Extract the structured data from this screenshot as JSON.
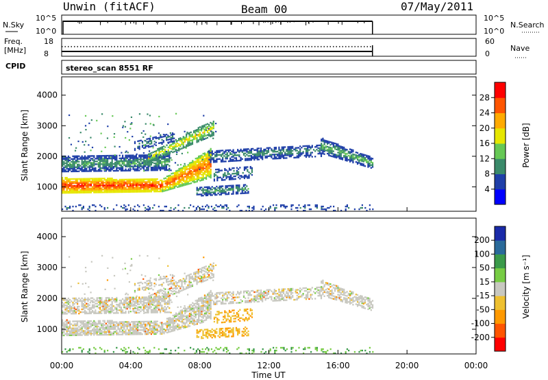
{
  "header": {
    "station": "Unwin (fitACF)",
    "beam": "Beam 00",
    "date": "07/May/2011",
    "program": "stereo_scan 8551 RF"
  },
  "noise_panel": {
    "left_label": "N.Sky",
    "right_label": "N.Search",
    "left_ticks": [
      "10^5",
      "10^0"
    ],
    "right_ticks": [
      "10^5",
      "10^0"
    ]
  },
  "freq_panel": {
    "left_label_1": "Freq.",
    "left_label_2": "[MHz]",
    "left_ticks": [
      "18",
      "8"
    ],
    "right_label": "Nave",
    "right_ticks": [
      "60",
      "0"
    ]
  },
  "cpid_label": "CPID",
  "colors": {
    "power_scale": [
      "#0000ff",
      "#1f3fa8",
      "#3a8a6a",
      "#66c855",
      "#e6e600",
      "#ffaa00",
      "#ff5500",
      "#ff0000"
    ],
    "velocity_scale": [
      "#1a2aa8",
      "#2a6a9a",
      "#3a9a4a",
      "#77cc44",
      "#c8c8c0",
      "#eec030",
      "#ff9900",
      "#ff5500",
      "#ff0000"
    ],
    "grey": "#c8c8c0"
  },
  "chart_data": [
    {
      "type": "heatmap",
      "name": "power",
      "ylabel": "Slant Range [km]",
      "yticks": [
        "1000",
        "2000",
        "3000",
        "4000"
      ],
      "ylim": [
        200,
        4600
      ],
      "colorbar_label": "Power [dB]",
      "colorbar_ticks": [
        "4",
        "8",
        "12",
        "16",
        "20",
        "24",
        "28"
      ],
      "color_range": [
        0,
        32
      ],
      "approx_regions": [
        {
          "x_hours": [
            0,
            6
          ],
          "range_km": [
            800,
            1300
          ],
          "power_db": [
            20,
            30
          ]
        },
        {
          "x_hours": [
            0,
            6
          ],
          "range_km": [
            1500,
            2000
          ],
          "power_db": [
            4,
            12
          ]
        },
        {
          "x_hours": [
            5.5,
            9
          ],
          "range_km": [
            1200,
            3200
          ],
          "power_db": [
            12,
            24
          ]
        },
        {
          "x_hours": [
            9,
            18
          ],
          "range_km": [
            1700,
            2400
          ],
          "power_db": [
            4,
            14
          ]
        }
      ]
    },
    {
      "type": "heatmap",
      "name": "velocity",
      "ylabel": "Slant Range [km]",
      "yticks": [
        "1000",
        "2000",
        "3000",
        "4000"
      ],
      "ylim": [
        200,
        4600
      ],
      "colorbar_label": "Velocity [m s⁻¹]",
      "colorbar_ticks": [
        "200",
        "100",
        "50",
        "15",
        "-15",
        "-50",
        "-100",
        "-200"
      ],
      "xlabel": "Time UT",
      "xticks": [
        "00:00",
        "04:00",
        "08:00",
        "12:00",
        "16:00",
        "20:00",
        "00:00"
      ],
      "xlim_hours": [
        0,
        24
      ],
      "data_end_hours": 18
    }
  ]
}
